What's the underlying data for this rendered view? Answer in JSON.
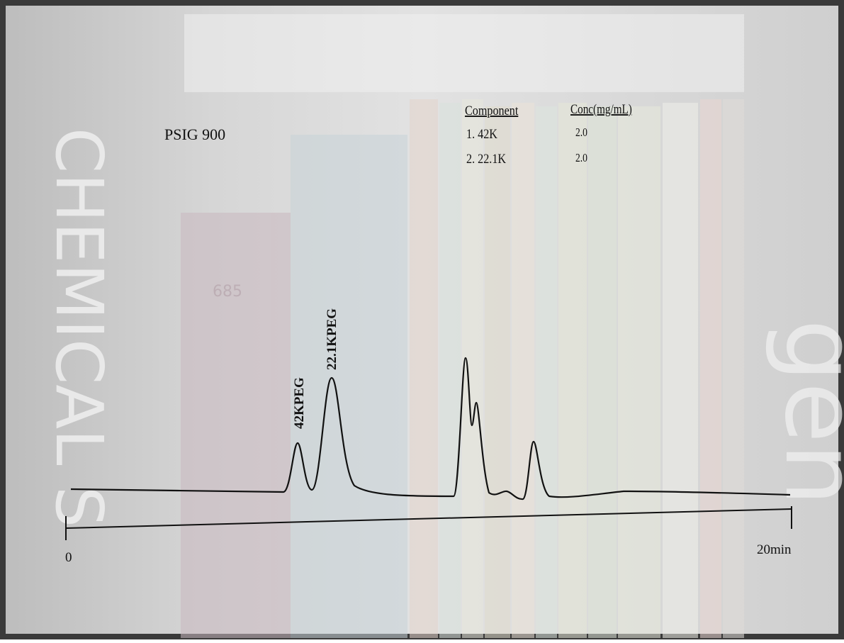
{
  "title": "PSIG 900",
  "table": {
    "headers": [
      "Component",
      "Conc(mg/mL)"
    ],
    "rows": [
      [
        "1. 42K",
        "2.0"
      ],
      [
        "2. 22.1K",
        "2.0"
      ]
    ]
  },
  "peaks": [
    {
      "label": "42KPEG"
    },
    {
      "label": "22.1KPEG"
    }
  ],
  "axis": {
    "start": "0",
    "end": "20min"
  },
  "background": {
    "texts": [
      "CHEMICAL S",
      "gen",
      "685"
    ]
  }
}
